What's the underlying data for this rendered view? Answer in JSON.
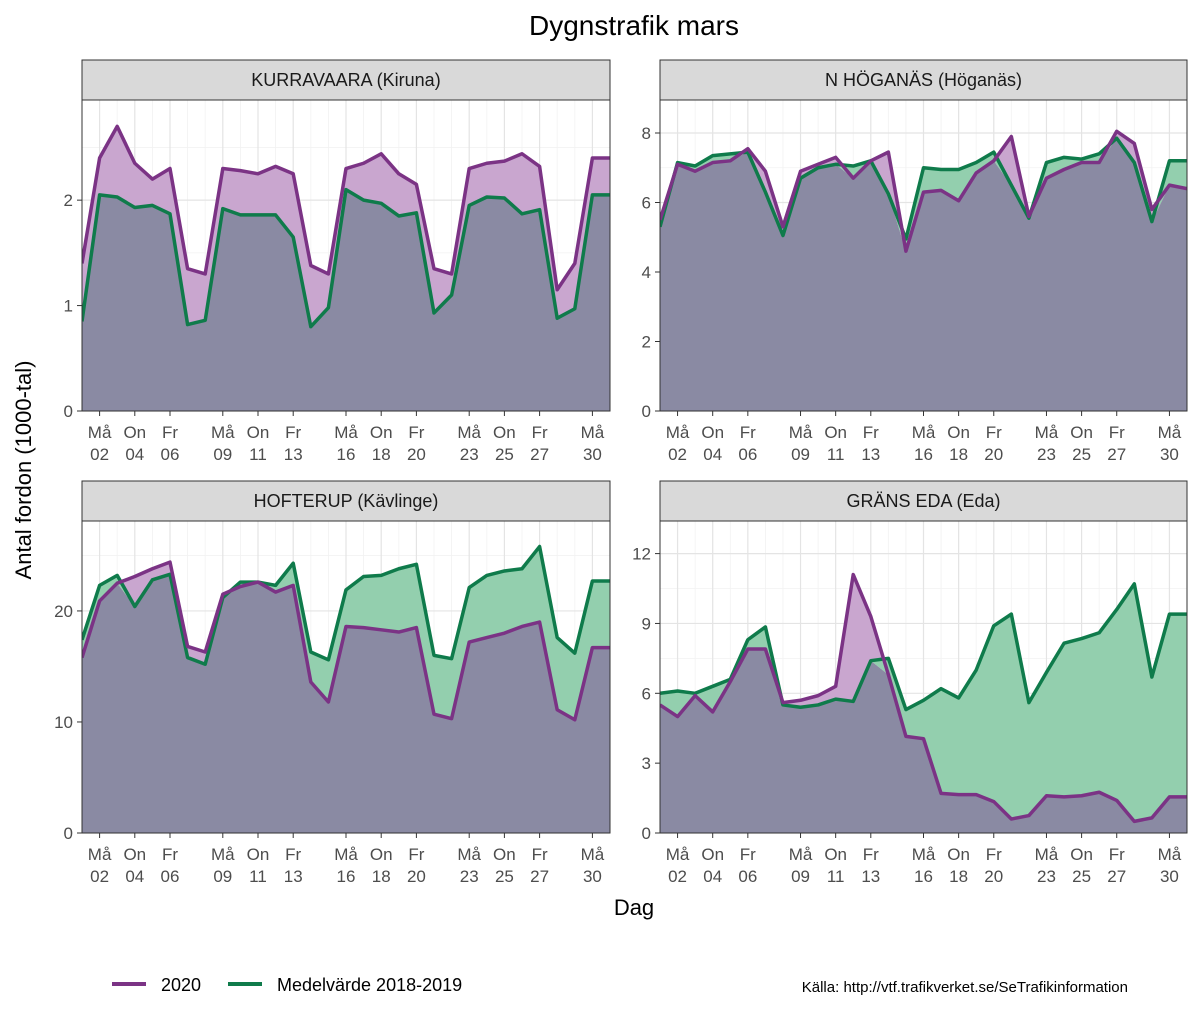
{
  "chart_data": {
    "type": "area",
    "title": "Dygnstrafik mars",
    "xlabel": "Dag",
    "ylabel": "Antal fordon (1000-tal)",
    "source": "Källa: http://vtf.trafikverket.se/SeTrafikinformation",
    "x_days": [
      1,
      2,
      3,
      4,
      5,
      6,
      7,
      8,
      9,
      10,
      11,
      12,
      13,
      14,
      15,
      16,
      17,
      18,
      19,
      20,
      21,
      22,
      23,
      24,
      25,
      26,
      27,
      28,
      29,
      30,
      31
    ],
    "x_ticks": [
      {
        "day": 2,
        "wd": "Må",
        "d": "02"
      },
      {
        "day": 4,
        "wd": "On",
        "d": "04"
      },
      {
        "day": 6,
        "wd": "Fr",
        "d": "06"
      },
      {
        "day": 9,
        "wd": "Må",
        "d": "09"
      },
      {
        "day": 11,
        "wd": "On",
        "d": "11"
      },
      {
        "day": 13,
        "wd": "Fr",
        "d": "13"
      },
      {
        "day": 16,
        "wd": "Må",
        "d": "16"
      },
      {
        "day": 18,
        "wd": "On",
        "d": "18"
      },
      {
        "day": 20,
        "wd": "Fr",
        "d": "20"
      },
      {
        "day": 23,
        "wd": "Må",
        "d": "23"
      },
      {
        "day": 25,
        "wd": "On",
        "d": "25"
      },
      {
        "day": 27,
        "wd": "Fr",
        "d": "27"
      },
      {
        "day": 30,
        "wd": "Må",
        "d": "30"
      }
    ],
    "legend": [
      {
        "name": "2020",
        "color": "#7b3385"
      },
      {
        "name": "Medelvärde 2018-2019",
        "color": "#0f7b4b"
      }
    ],
    "colors": {
      "y2020": "#7b3385",
      "avg": "#0f7b4b",
      "y2020_fill": "#c9a6cf",
      "avg_fill": "#93cfae",
      "overlap": "#8a8aa3"
    },
    "panels": [
      {
        "strip": "KURRAVAARA (Kiruna)",
        "ylim": [
          0,
          2.95
        ],
        "yticks": [
          0,
          1,
          2
        ],
        "ytick_labels": [
          "0",
          "1",
          "2"
        ],
        "y2020": [
          1.4,
          2.4,
          2.7,
          2.35,
          2.2,
          2.3,
          1.35,
          1.3,
          2.3,
          2.28,
          2.25,
          2.32,
          2.25,
          1.38,
          1.3,
          2.3,
          2.35,
          2.44,
          2.25,
          2.15,
          1.35,
          1.3,
          2.3,
          2.35,
          2.37,
          2.44,
          2.32,
          1.15,
          1.4,
          2.4,
          2.4
        ],
        "avg": [
          0.85,
          2.05,
          2.03,
          1.93,
          1.95,
          1.87,
          0.82,
          0.86,
          1.92,
          1.86,
          1.86,
          1.86,
          1.65,
          0.8,
          0.98,
          2.1,
          2.0,
          1.97,
          1.85,
          1.88,
          0.93,
          1.1,
          1.95,
          2.03,
          2.02,
          1.87,
          1.91,
          0.88,
          0.97,
          2.05,
          2.05
        ]
      },
      {
        "strip": "N HÖGANÄS (Höganäs)",
        "ylim": [
          0,
          8.95
        ],
        "yticks": [
          0,
          2,
          4,
          6,
          8
        ],
        "ytick_labels": [
          "0",
          "2",
          "4",
          "6",
          "8"
        ],
        "y2020": [
          5.5,
          7.1,
          6.9,
          7.15,
          7.2,
          7.55,
          6.9,
          5.3,
          6.9,
          7.1,
          7.3,
          6.7,
          7.2,
          7.45,
          4.6,
          6.3,
          6.35,
          6.05,
          6.85,
          7.2,
          7.9,
          5.6,
          6.7,
          6.95,
          7.15,
          7.15,
          8.05,
          7.7,
          5.8,
          6.5,
          6.4
        ],
        "avg": [
          5.3,
          7.15,
          7.05,
          7.35,
          7.4,
          7.45,
          6.3,
          5.05,
          6.7,
          7.0,
          7.1,
          7.05,
          7.2,
          6.25,
          4.95,
          7.0,
          6.95,
          6.95,
          7.15,
          7.45,
          6.5,
          5.55,
          7.15,
          7.3,
          7.25,
          7.4,
          7.85,
          7.15,
          5.45,
          7.2,
          7.2
        ]
      },
      {
        "strip": "HOFTERUP (Kävlinge)",
        "ylim": [
          0,
          28.1
        ],
        "yticks": [
          0,
          10,
          20
        ],
        "ytick_labels": [
          "0",
          "10",
          "20"
        ],
        "y2020": [
          15.8,
          20.9,
          22.5,
          23.1,
          23.8,
          24.4,
          16.8,
          16.3,
          21.5,
          22.2,
          22.6,
          21.7,
          22.3,
          13.6,
          11.8,
          18.6,
          18.5,
          18.3,
          18.1,
          18.5,
          10.7,
          10.3,
          17.2,
          17.6,
          18.0,
          18.6,
          19.0,
          11.1,
          10.2,
          16.7,
          16.7
        ],
        "avg": [
          17.4,
          22.3,
          23.2,
          20.4,
          22.8,
          23.3,
          15.8,
          15.2,
          21.2,
          22.6,
          22.6,
          22.3,
          24.3,
          16.3,
          15.6,
          21.9,
          23.1,
          23.2,
          23.8,
          24.2,
          16.0,
          15.7,
          22.1,
          23.2,
          23.6,
          23.8,
          25.8,
          17.6,
          16.2,
          22.7,
          22.7
        ]
      },
      {
        "strip": "GRÄNS EDA (Eda)",
        "ylim": [
          0,
          13.4
        ],
        "yticks": [
          0,
          3,
          6,
          9,
          12
        ],
        "ytick_labels": [
          "0",
          "3",
          "6",
          "9",
          "12"
        ],
        "y2020": [
          5.5,
          5.0,
          5.9,
          5.2,
          6.5,
          7.9,
          7.9,
          5.6,
          5.7,
          5.9,
          6.3,
          11.1,
          9.3,
          6.8,
          4.15,
          4.05,
          1.7,
          1.65,
          1.65,
          1.35,
          0.6,
          0.75,
          1.6,
          1.55,
          1.6,
          1.75,
          1.4,
          0.5,
          0.65,
          1.55,
          1.55
        ],
        "avg": [
          6.0,
          6.1,
          6.0,
          6.3,
          6.6,
          8.3,
          8.85,
          5.5,
          5.4,
          5.5,
          5.75,
          5.65,
          7.4,
          7.5,
          5.3,
          5.7,
          6.2,
          5.8,
          7.0,
          8.9,
          9.4,
          5.6,
          6.9,
          8.15,
          8.35,
          8.6,
          9.6,
          10.7,
          6.7,
          9.4,
          9.4
        ]
      }
    ]
  }
}
